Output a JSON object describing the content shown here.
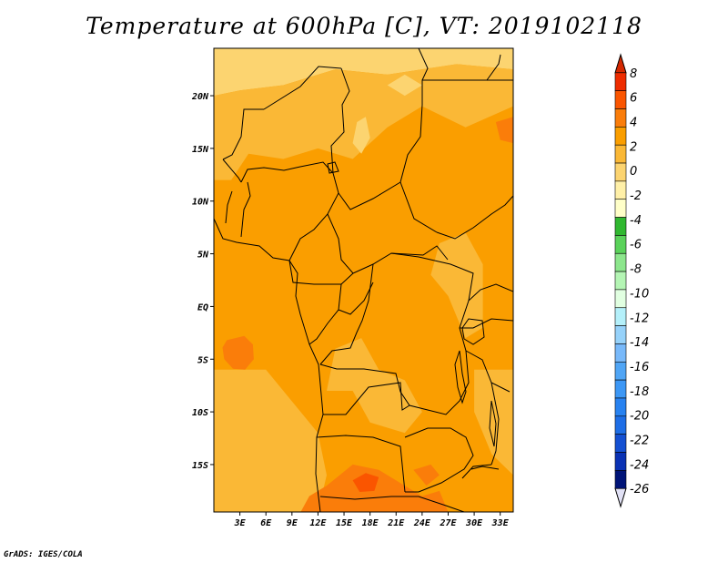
{
  "title": "Temperature at 600hPa [C], VT: 2019102118",
  "credit": "GrADS: IGES/COLA",
  "map": {
    "lon_range": [
      0,
      34.5
    ],
    "lat_range": [
      -19.5,
      24.5
    ],
    "lon_ticks": [
      {
        "value": 3,
        "label": "3E"
      },
      {
        "value": 6,
        "label": "6E"
      },
      {
        "value": 9,
        "label": "9E"
      },
      {
        "value": 12,
        "label": "12E"
      },
      {
        "value": 15,
        "label": "15E"
      },
      {
        "value": 18,
        "label": "18E"
      },
      {
        "value": 21,
        "label": "21E"
      },
      {
        "value": 24,
        "label": "24E"
      },
      {
        "value": 27,
        "label": "27E"
      },
      {
        "value": 30,
        "label": "30E"
      },
      {
        "value": 33,
        "label": "33E"
      }
    ],
    "lat_ticks": [
      {
        "value": 20,
        "label": "20N"
      },
      {
        "value": 15,
        "label": "15N"
      },
      {
        "value": 10,
        "label": "10N"
      },
      {
        "value": 5,
        "label": "5N"
      },
      {
        "value": 0,
        "label": "EQ"
      },
      {
        "value": -5,
        "label": "5S"
      },
      {
        "value": -10,
        "label": "10S"
      },
      {
        "value": -15,
        "label": "15S"
      }
    ]
  },
  "colorbar": {
    "levels": [
      "8",
      "6",
      "4",
      "2",
      "0",
      "-2",
      "-4",
      "-6",
      "-8",
      "-10",
      "-12",
      "-14",
      "-16",
      "-18",
      "-20",
      "-22",
      "-24",
      "-26"
    ],
    "colors": [
      "#ee2c00",
      "#fa5500",
      "#fa7d0a",
      "#fa9e00",
      "#fab836",
      "#fcd470",
      "#fff0a8",
      "#ffffc8",
      "#30b830",
      "#5ad25a",
      "#8ce68c",
      "#b4f5b4",
      "#e1ffe1",
      "#b4f0fa",
      "#96d2fa",
      "#78b9fa",
      "#50a5f5",
      "#3c97f5",
      "#2882f0",
      "#1e6ee6",
      "#1450d2",
      "#0a32b4",
      "#001478",
      "#e1e1f5"
    ],
    "top_color": "#d42800",
    "bottom_color": "#e1e1f5"
  },
  "field": {
    "base_color": "#fa9e00",
    "regions": [
      {
        "name": "sahara-north",
        "color": "#fcd470",
        "polygon": [
          [
            0,
            24.5
          ],
          [
            34.5,
            24.5
          ],
          [
            34.5,
            22.5
          ],
          [
            28,
            23
          ],
          [
            20,
            22
          ],
          [
            14,
            22.5
          ],
          [
            8,
            21
          ],
          [
            3,
            20.5
          ],
          [
            0,
            20
          ]
        ]
      },
      {
        "name": "sahel-north",
        "color": "#fab836",
        "polygon": [
          [
            0,
            20
          ],
          [
            3,
            20.5
          ],
          [
            8,
            21
          ],
          [
            14,
            22.5
          ],
          [
            20,
            22
          ],
          [
            28,
            23
          ],
          [
            34.5,
            22.5
          ],
          [
            34.5,
            19
          ],
          [
            29,
            17
          ],
          [
            24,
            19
          ],
          [
            20,
            17
          ],
          [
            16,
            14
          ],
          [
            12,
            15
          ],
          [
            8,
            14
          ],
          [
            4,
            14.5
          ],
          [
            2,
            12
          ],
          [
            0,
            12
          ]
        ]
      },
      {
        "name": "cool-patch-sudan",
        "color": "#fcd470",
        "polygon": [
          [
            16.5,
            17.5
          ],
          [
            17.5,
            18
          ],
          [
            18,
            16
          ],
          [
            17,
            14.5
          ],
          [
            16,
            15.5
          ]
        ]
      },
      {
        "name": "cool-patch-north",
        "color": "#fcd470",
        "polygon": [
          [
            20,
            21
          ],
          [
            22,
            22
          ],
          [
            24,
            21
          ],
          [
            22,
            20
          ]
        ]
      },
      {
        "name": "east-light",
        "color": "#fab836",
        "polygon": [
          [
            26,
            6
          ],
          [
            29,
            7
          ],
          [
            31,
            4
          ],
          [
            31,
            -2
          ],
          [
            29,
            -3
          ],
          [
            27,
            1
          ],
          [
            25,
            3
          ]
        ]
      },
      {
        "name": "congo-light",
        "color": "#fab836",
        "polygon": [
          [
            14,
            -4
          ],
          [
            17,
            -3
          ],
          [
            19,
            -6
          ],
          [
            22,
            -7
          ],
          [
            24,
            -10
          ],
          [
            22,
            -12
          ],
          [
            18,
            -11
          ],
          [
            16,
            -8
          ],
          [
            13,
            -8
          ]
        ]
      },
      {
        "name": "atlantic-south",
        "color": "#fab836",
        "polygon": [
          [
            0,
            -6
          ],
          [
            6,
            -6
          ],
          [
            9,
            -9
          ],
          [
            12,
            -12
          ],
          [
            13,
            -16
          ],
          [
            12,
            -19.5
          ],
          [
            0,
            -19.5
          ]
        ]
      },
      {
        "name": "east-coast-light",
        "color": "#fab836",
        "polygon": [
          [
            30,
            -6
          ],
          [
            34.5,
            -6
          ],
          [
            34.5,
            -16
          ],
          [
            32,
            -14
          ],
          [
            30,
            -10
          ]
        ]
      },
      {
        "name": "hot-atlantic",
        "color": "#fa7d0a",
        "polygon": [
          [
            1.5,
            -3.2
          ],
          [
            3.5,
            -2.8
          ],
          [
            4.5,
            -3.6
          ],
          [
            4.6,
            -5.0
          ],
          [
            3.6,
            -6.0
          ],
          [
            2.2,
            -5.9
          ],
          [
            1.2,
            -5.0
          ],
          [
            1.0,
            -3.9
          ]
        ]
      },
      {
        "name": "hot-sudan",
        "color": "#fa7d0a",
        "polygon": [
          [
            32.5,
            17.5
          ],
          [
            34.5,
            18
          ],
          [
            34.5,
            15.5
          ],
          [
            33,
            15.8
          ]
        ]
      },
      {
        "name": "hot-south",
        "color": "#fa7d0a",
        "polygon": [
          [
            13,
            -17
          ],
          [
            16,
            -15
          ],
          [
            19,
            -15.5
          ],
          [
            22,
            -17
          ],
          [
            24,
            -18
          ],
          [
            26,
            -17.5
          ],
          [
            27,
            -19.5
          ],
          [
            10,
            -19.5
          ],
          [
            11,
            -18
          ]
        ]
      },
      {
        "name": "hot-south2",
        "color": "#fa7d0a",
        "polygon": [
          [
            23,
            -15.5
          ],
          [
            25,
            -15
          ],
          [
            26,
            -16
          ],
          [
            24.5,
            -17
          ]
        ]
      },
      {
        "name": "hotter-south",
        "color": "#fa5500",
        "polygon": [
          [
            16,
            -16.5
          ],
          [
            17.5,
            -15.8
          ],
          [
            19,
            -16.2
          ],
          [
            18.5,
            -17.5
          ],
          [
            16.8,
            -17.6
          ]
        ]
      }
    ]
  }
}
